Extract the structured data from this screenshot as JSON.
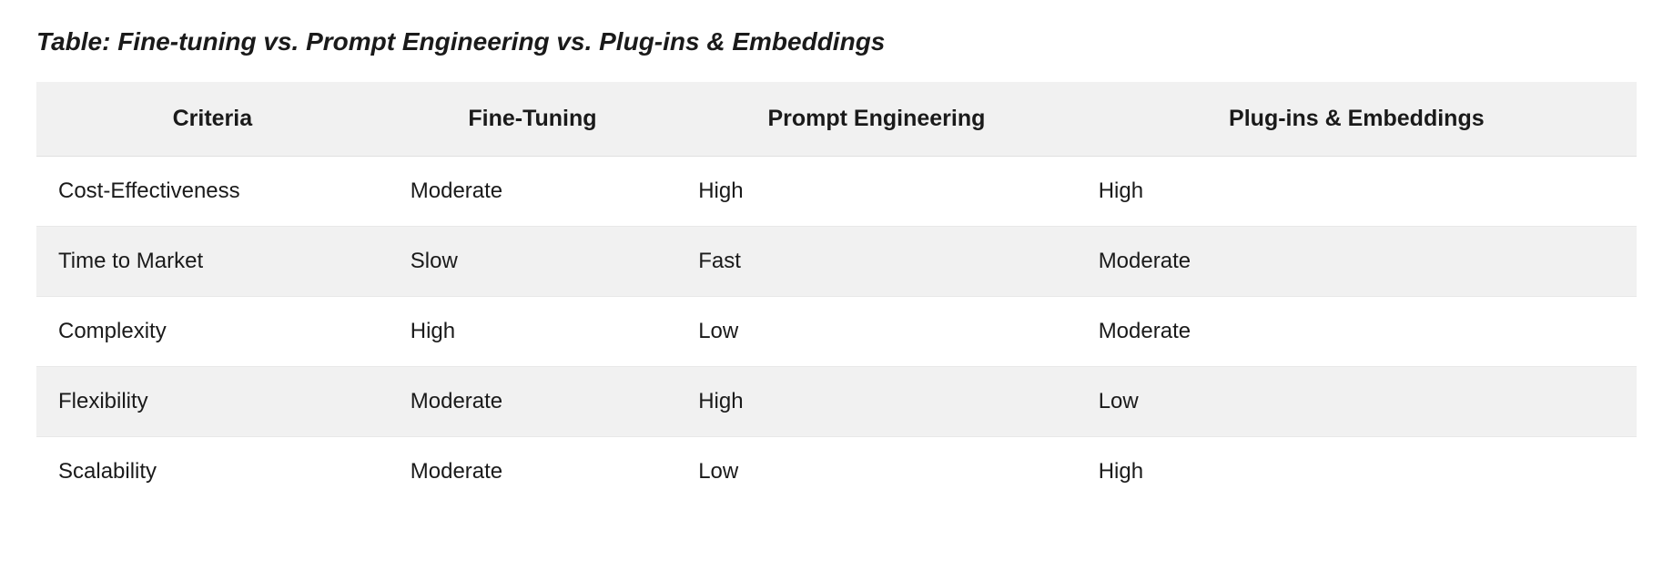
{
  "title": "Table: Fine-tuning vs. Prompt Engineering vs. Plug-ins & Embeddings",
  "table": {
    "columns": [
      "Criteria",
      "Fine-Tuning",
      "Prompt Engineering",
      "Plug-ins & Embeddings"
    ],
    "rows": [
      [
        "Cost-Effectiveness",
        "Moderate",
        "High",
        "High"
      ],
      [
        "Time to Market",
        "Slow",
        "Fast",
        "Moderate"
      ],
      [
        "Complexity",
        "High",
        "Low",
        "Moderate"
      ],
      [
        "Flexibility",
        "Moderate",
        "High",
        "Low"
      ],
      [
        "Scalability",
        "Moderate",
        "Low",
        "High"
      ]
    ],
    "header_bg": "#f1f1f1",
    "row_even_bg": "#f1f1f1",
    "row_odd_bg": "#ffffff",
    "border_color": "#e8e8e8",
    "text_color": "#1a1a1a",
    "title_fontsize": 28,
    "header_fontsize": 25,
    "cell_fontsize": 24,
    "column_widths_pct": [
      22,
      18,
      25,
      35
    ]
  }
}
